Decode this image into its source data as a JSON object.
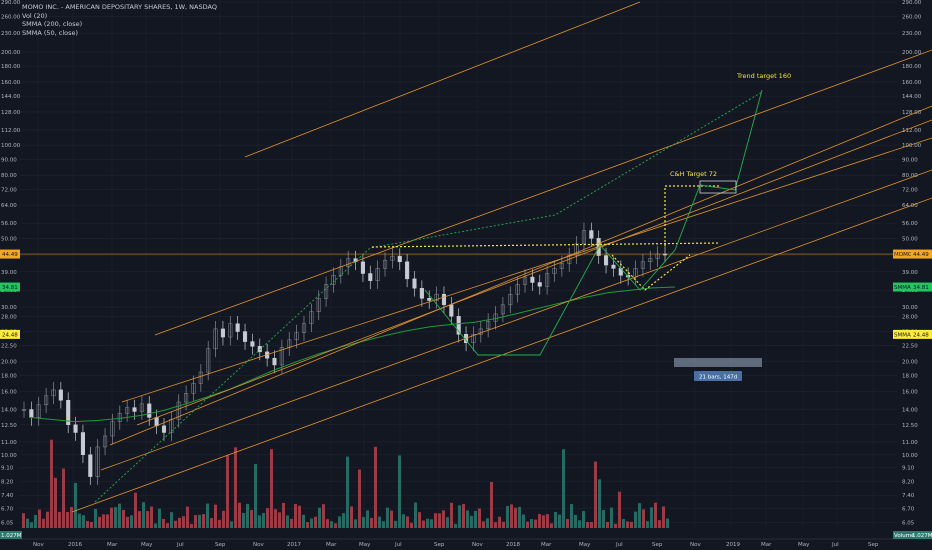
{
  "legend": {
    "symbol_line": "MOMO INC. - AMERICAN DEPOSITARY SHARES, 1W, NASDAQ",
    "vol_line": "Vol (20)",
    "smma200_line": "SMMA (200, close)",
    "smma50_line": "SMMA (50, close)"
  },
  "colors": {
    "background": "#131722",
    "grid": "#1f2433",
    "axis_text": "#b2b5be",
    "channel": "#e0932d",
    "pattern_yellow": "#f5e642",
    "pattern_green": "#22b14c",
    "smma_green": "#1f9a3a",
    "up_candle": "#8c8f99",
    "down_candle": "#c8cbd4",
    "vol_up": "#2a7a6e",
    "vol_down": "#b5414b",
    "price_badge": "#f5a623",
    "smma_badge": "#22c55e",
    "low_badge": "#ffeb3b",
    "measure_box": "#9fb0c8",
    "measure_label": "#4a6fa5"
  },
  "chart_data": {
    "type": "candlestick",
    "title": "MOMO INC. - AMERICAN DEPOSITARY SHARES, 1W, NASDAQ",
    "y_scale": "log",
    "ylim": [
      5.8,
      290
    ],
    "y_ticks": [
      "290.00",
      "260.00",
      "230.00",
      "200.00",
      "180.00",
      "160.00",
      "144.00",
      "128.00",
      "112.00",
      "100.00",
      "90.00",
      "80.00",
      "72.00",
      "64.00",
      "56.00",
      "50.00",
      "44.00",
      "39.00",
      "34.00",
      "30.00",
      "28.00",
      "25.00",
      "22.50",
      "20.00",
      "18.00",
      "16.00",
      "14.00",
      "12.50",
      "11.00",
      "10.00",
      "9.10",
      "8.20",
      "7.40",
      "6.70",
      "6.05"
    ],
    "x_ticks": [
      "Nov",
      "2016",
      "Mar",
      "May",
      "Jul",
      "Sep",
      "Nov",
      "2017",
      "Mar",
      "May",
      "Jul",
      "Sep",
      "Nov",
      "2018",
      "Mar",
      "May",
      "Jul",
      "Sep",
      "Nov",
      "2019",
      "Mar",
      "May",
      "Jul",
      "Sep"
    ],
    "series": [
      {
        "name": "Price (weekly close, approx.)",
        "values": [
          14.0,
          13.2,
          14.5,
          15.5,
          16.2,
          15.0,
          12.5,
          11.8,
          10.0,
          8.5,
          10.6,
          11.5,
          12.8,
          13.6,
          14.2,
          13.8,
          14.6,
          13.2,
          12.4,
          11.8,
          13.0,
          14.8,
          15.8,
          17.0,
          18.5,
          22.0,
          25.5,
          24.0,
          26.5,
          25.0,
          23.2,
          22.4,
          21.5,
          20.5,
          19.5,
          22.2,
          23.5,
          24.8,
          26.5,
          29.0,
          32.0,
          35.5,
          38.0,
          40.5,
          43.0,
          42.0,
          38.5,
          36.5,
          40.0,
          42.5,
          43.8,
          42.0,
          37.0,
          34.5,
          32.0,
          31.5,
          33.0,
          30.5,
          28.0,
          24.5,
          23.0,
          24.5,
          25.5,
          27.0,
          28.5,
          30.5,
          33.0,
          35.5,
          37.5,
          36.0,
          35.0,
          38.5,
          40.0,
          41.5,
          44.0,
          48.0,
          53.0,
          50.0,
          44.0,
          41.0,
          40.0,
          38.0,
          37.5,
          40.0,
          42.0,
          43.0,
          44.5,
          44.49
        ]
      },
      {
        "name": "SMMA (50, close)",
        "values": [
          13.2,
          13.0,
          12.8,
          12.9,
          13.1,
          13.4,
          13.9,
          14.6,
          15.4,
          16.3,
          17.5,
          18.8,
          20.0,
          21.2,
          22.3,
          23.3,
          24.3,
          25.2,
          25.9,
          26.4,
          26.8,
          27.6,
          28.7,
          29.9,
          31.1,
          32.3,
          33.4,
          34.0,
          34.6,
          34.81
        ]
      },
      {
        "name": "SMMA (200, close)"
      }
    ],
    "annotations": [
      "Trend target 160",
      "C&H Target 72",
      "21 bars, 147d"
    ],
    "price_badges": {
      "last": "44.49",
      "smma50": "34.81",
      "smma200": "24.48"
    },
    "badge_labels": {
      "last": "MOMO",
      "smma50": "SMMA",
      "smma200": "SMMA"
    },
    "volume_labels": {
      "left": "1.027M",
      "right": "1.027M",
      "name": "Volume"
    }
  }
}
